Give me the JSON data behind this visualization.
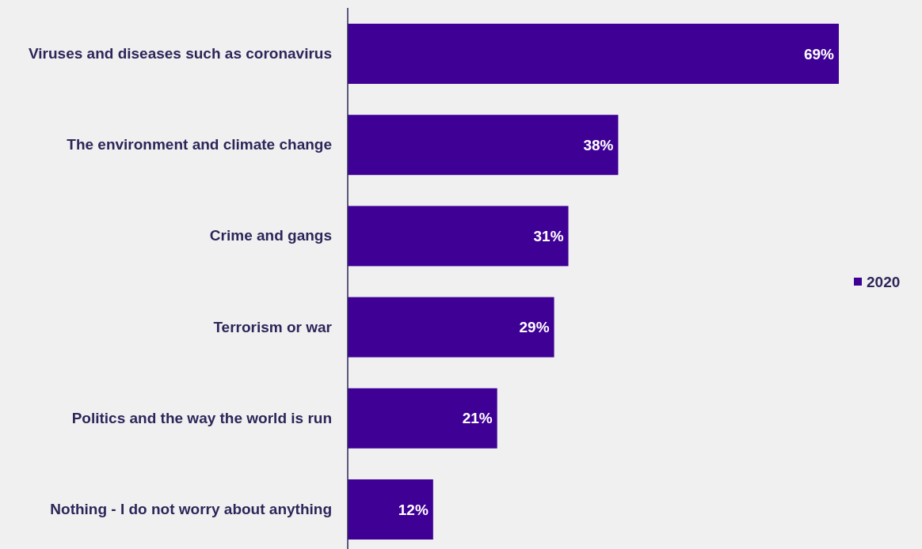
{
  "chart_data": {
    "type": "bar",
    "orientation": "horizontal",
    "categories": [
      "Viruses and diseases such as coronavirus",
      "The environment and climate change",
      "Crime and gangs",
      "Terrorism or war",
      "Politics and the way the world is run",
      "Nothing - I do not worry about anything"
    ],
    "series": [
      {
        "name": "2020",
        "color": "#3f0096",
        "values": [
          69,
          38,
          31,
          29,
          21,
          12
        ],
        "value_labels": [
          "69%",
          "38%",
          "31%",
          "29%",
          "21%",
          "12%"
        ]
      }
    ],
    "legend": "right"
  }
}
